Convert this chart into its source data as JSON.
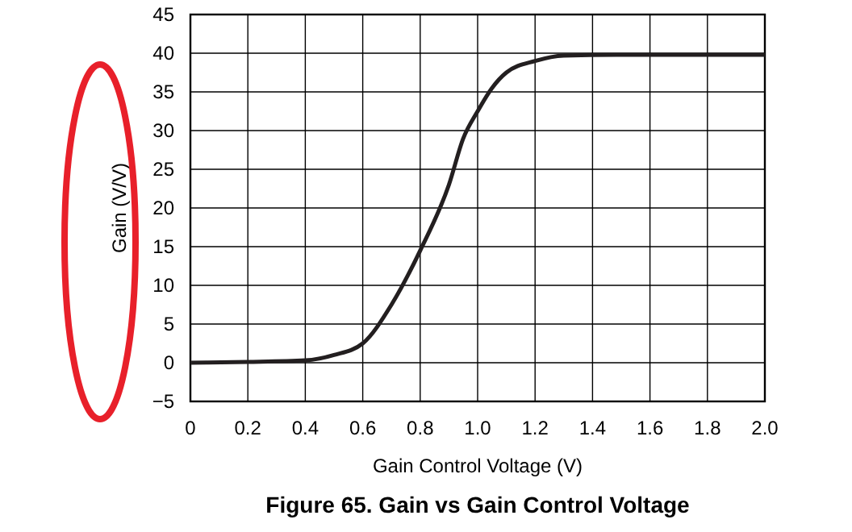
{
  "chart_data": {
    "type": "line",
    "title": "Figure 65. Gain vs Gain Control Voltage",
    "xlabel": "Gain Control Voltage (V)",
    "ylabel": "Gain (V/V)",
    "x": [
      0,
      0.2,
      0.4,
      0.5,
      0.6,
      0.7,
      0.8,
      0.9,
      0.95,
      1.0,
      1.05,
      1.1,
      1.2,
      1.3,
      1.5,
      2.0
    ],
    "series": [
      {
        "color": "#231f20",
        "values": [
          0,
          0.1,
          0.3,
          1,
          2.5,
          7.5,
          14.5,
          23,
          29,
          32.5,
          35.5,
          37.5,
          39,
          39.7,
          39.8,
          39.8
        ]
      }
    ],
    "xlim": [
      0,
      2
    ],
    "ylim": [
      -5,
      45
    ],
    "xticks": [
      0,
      0.2,
      0.4,
      0.6,
      0.8,
      {
        "value": 1,
        "label": "1.0"
      },
      1.2,
      1.4,
      1.6,
      1.8,
      {
        "value": 2,
        "label": "2.0"
      }
    ],
    "yticks": [
      {
        "value": -5,
        "label": "−5"
      },
      0,
      5,
      10,
      15,
      20,
      25,
      30,
      35,
      40,
      45
    ],
    "grid": true,
    "line_style": "solid",
    "marker": "none"
  }
}
